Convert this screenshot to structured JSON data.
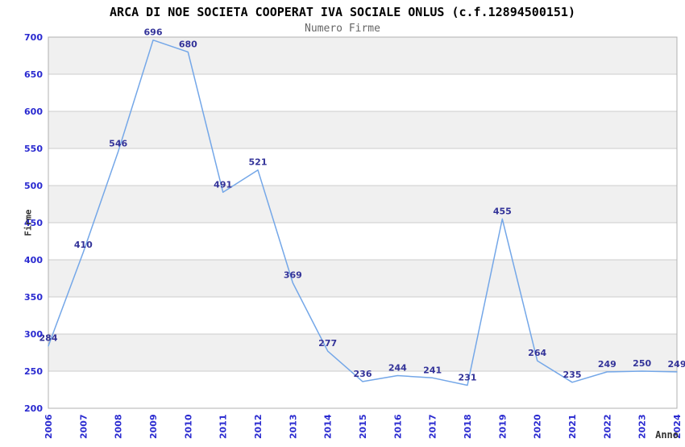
{
  "header": {
    "title": "ARCA DI NOE SOCIETA COOPERAT IVA SOCIALE ONLUS (c.f.12894500151)",
    "subtitle": "Numero Firme"
  },
  "chart_data": {
    "type": "line",
    "title": "ARCA DI NOE SOCIETA COOPERAT IVA SOCIALE ONLUS (c.f.12894500151)",
    "subtitle": "Numero Firme",
    "xlabel": "Anno",
    "ylabel": "Firme",
    "categories": [
      "2006",
      "2007",
      "2008",
      "2009",
      "2010",
      "2011",
      "2012",
      "2013",
      "2014",
      "2015",
      "2016",
      "2017",
      "2018",
      "2019",
      "2020",
      "2021",
      "2022",
      "2023",
      "2024"
    ],
    "values": [
      284,
      410,
      546,
      696,
      680,
      491,
      521,
      369,
      277,
      236,
      244,
      241,
      231,
      455,
      264,
      235,
      249,
      250,
      249
    ],
    "ylim": [
      200,
      700
    ],
    "ytick_step": 50,
    "yticks": [
      200,
      250,
      300,
      350,
      400,
      450,
      500,
      550,
      600,
      650,
      700
    ],
    "grid": "horizontal gridlines every 50, alternating 50-unit background bands",
    "legend": "none",
    "data_labels_visible": true,
    "colors": {
      "line": "#74a7e8",
      "data_label": "#333399",
      "tick_label": "#2a2ad0",
      "band_gray": "#f0f0f0",
      "band_white": "#ffffff",
      "grid": "#cccccc",
      "border": "#b0b0b0",
      "title": "#000000",
      "subtitle": "#666666",
      "axis_title": "#333333"
    }
  }
}
